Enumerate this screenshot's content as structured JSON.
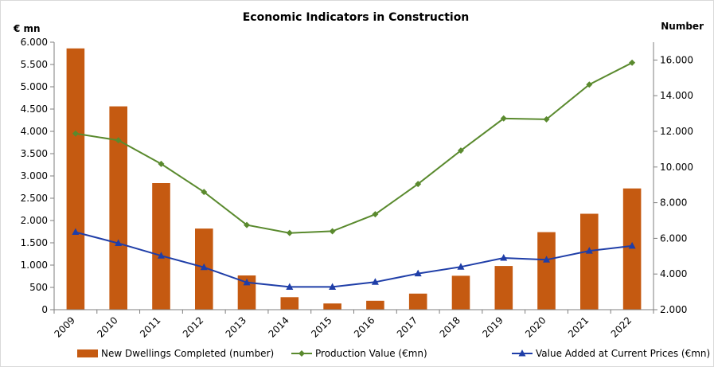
{
  "chart_data": {
    "type": "bar",
    "title": "Economic Indicators in Construction",
    "ylabel_left": "€ mn",
    "ylabel_right": "Number",
    "categories": [
      "2009",
      "2010",
      "2011",
      "2012",
      "2013",
      "2014",
      "2015",
      "2016",
      "2017",
      "2018",
      "2019",
      "2020",
      "2021",
      "2022"
    ],
    "left_axis": {
      "ylim": [
        0,
        6000
      ],
      "ticks": [
        0,
        500,
        1000,
        1500,
        2000,
        2500,
        3000,
        3500,
        4000,
        4500,
        5000,
        5500,
        6000
      ],
      "tick_labels": [
        "0",
        "500",
        "1.000",
        "1.500",
        "2.000",
        "2.500",
        "3.000",
        "3.500",
        "4.000",
        "4.500",
        "5.000",
        "5.500",
        "6.000"
      ]
    },
    "right_axis": {
      "ylim": [
        2000,
        17000
      ],
      "ticks": [
        2000,
        4000,
        6000,
        8000,
        10000,
        12000,
        14000,
        16000
      ],
      "tick_labels": [
        "2.000",
        "4.000",
        "6.000",
        "8.000",
        "10.000",
        "12.000",
        "14.000",
        "16.000"
      ]
    },
    "grid": false,
    "legend_position": "bottom",
    "series": [
      {
        "name": "New Dwellings Completed (number)",
        "type": "bar",
        "axis": "right",
        "color": "#c55a11",
        "values": [
          16650,
          13400,
          9100,
          6550,
          3920,
          2700,
          2350,
          2500,
          2900,
          3900,
          4450,
          6350,
          7380,
          8800
        ]
      },
      {
        "name": "Production Value (€mn)",
        "type": "line",
        "axis": "left",
        "color": "#5a8a2e",
        "marker": "diamond",
        "values": [
          3950,
          3800,
          3270,
          2640,
          1900,
          1720,
          1760,
          2140,
          2820,
          3570,
          4290,
          4270,
          5050,
          5540
        ]
      },
      {
        "name": "Value Added at Current Prices (€mn)",
        "type": "line",
        "axis": "left",
        "color": "#1f3ea8",
        "marker": "triangle",
        "values": [
          1740,
          1490,
          1210,
          950,
          610,
          510,
          510,
          620,
          810,
          960,
          1160,
          1120,
          1320,
          1430
        ]
      }
    ]
  }
}
